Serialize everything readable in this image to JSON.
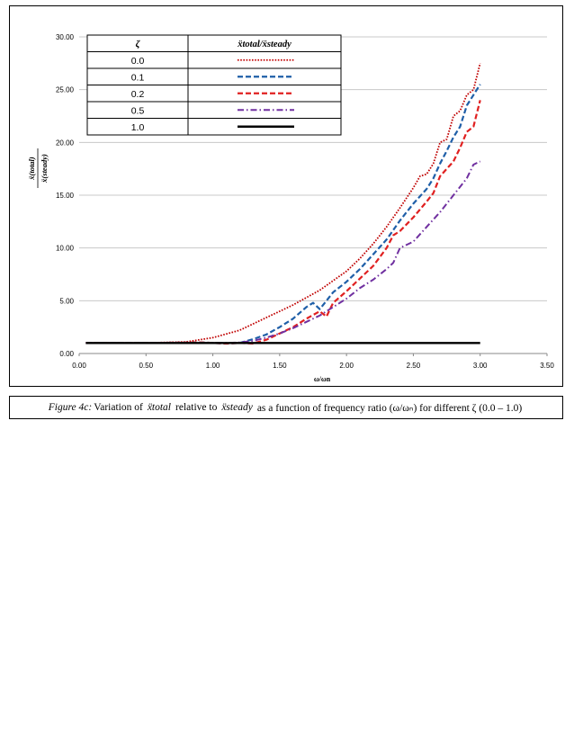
{
  "chart_data": {
    "type": "line",
    "title": "",
    "xlabel": "ω/ωn",
    "ylabel": "ẍ(total) / ẍ(steady)",
    "xlim": [
      0,
      3.5
    ],
    "ylim": [
      0,
      30
    ],
    "x_ticks": [
      "0.00",
      "0.50",
      "1.00",
      "1.50",
      "2.00",
      "2.50",
      "3.00",
      "3.50"
    ],
    "y_ticks": [
      "0.00",
      "5.00",
      "10.00",
      "15.00",
      "20.00",
      "25.00",
      "30.00"
    ],
    "grid": "horizontal",
    "legend": {
      "header_zeta": "ζ",
      "header_ratio": "ẍtotal/ẍsteady",
      "entries": [
        "0.0",
        "0.1",
        "0.2",
        "0.5",
        "1.0"
      ]
    },
    "series": [
      {
        "name": "0.0",
        "color": "#c00000",
        "style": "dotted",
        "x": [
          0.05,
          0.5,
          0.8,
          1.0,
          1.2,
          1.4,
          1.6,
          1.8,
          2.0,
          2.1,
          2.2,
          2.3,
          2.4,
          2.5,
          2.55,
          2.6,
          2.65,
          2.7,
          2.75,
          2.8,
          2.85,
          2.9,
          2.95,
          3.0
        ],
        "y": [
          1.0,
          1.0,
          1.1,
          1.5,
          2.2,
          3.4,
          4.6,
          6.0,
          7.8,
          9.0,
          10.4,
          12.0,
          13.8,
          15.7,
          16.8,
          17.0,
          18.0,
          20.0,
          20.3,
          22.5,
          23.0,
          24.5,
          25.0,
          27.5
        ]
      },
      {
        "name": "0.1",
        "color": "#1f5fa8",
        "style": "dashed",
        "x": [
          0.05,
          0.5,
          0.9,
          1.0,
          1.1,
          1.2,
          1.3,
          1.4,
          1.5,
          1.6,
          1.7,
          1.75,
          1.8,
          1.9,
          2.0,
          2.1,
          2.2,
          2.3,
          2.4,
          2.5,
          2.6,
          2.65,
          2.7,
          2.75,
          2.8,
          2.85,
          2.9,
          2.95,
          3.0
        ],
        "y": [
          1.0,
          1.0,
          1.05,
          1.0,
          0.95,
          1.0,
          1.35,
          1.8,
          2.5,
          3.3,
          4.4,
          4.8,
          4.2,
          5.8,
          6.8,
          8.0,
          9.4,
          10.8,
          12.6,
          14.2,
          15.6,
          16.6,
          18.0,
          19.2,
          20.5,
          21.5,
          23.5,
          24.5,
          25.5
        ]
      },
      {
        "name": "0.2",
        "color": "#e02020",
        "style": "dashed",
        "x": [
          0.05,
          0.5,
          0.9,
          1.0,
          1.1,
          1.2,
          1.3,
          1.4,
          1.5,
          1.6,
          1.7,
          1.8,
          1.85,
          1.9,
          2.0,
          2.1,
          2.2,
          2.3,
          2.35,
          2.4,
          2.5,
          2.6,
          2.65,
          2.7,
          2.75,
          2.8,
          2.85,
          2.9,
          2.95,
          3.0
        ],
        "y": [
          1.0,
          1.0,
          1.05,
          1.0,
          0.95,
          1.0,
          0.95,
          1.3,
          1.9,
          2.5,
          3.3,
          4.0,
          3.5,
          4.8,
          5.9,
          7.1,
          8.3,
          10.0,
          11.2,
          11.6,
          12.9,
          14.4,
          15.2,
          16.8,
          17.5,
          18.2,
          19.5,
          21.0,
          21.5,
          24.0
        ]
      },
      {
        "name": "0.5",
        "color": "#7030a0",
        "style": "dashdot",
        "x": [
          0.05,
          0.5,
          1.0,
          1.1,
          1.2,
          1.3,
          1.4,
          1.5,
          1.6,
          1.7,
          1.8,
          1.9,
          2.0,
          2.1,
          2.2,
          2.3,
          2.35,
          2.4,
          2.5,
          2.6,
          2.7,
          2.8,
          2.9,
          2.95,
          3.0
        ],
        "y": [
          1.0,
          1.0,
          1.0,
          1.0,
          1.05,
          1.2,
          1.5,
          1.9,
          2.4,
          3.0,
          3.6,
          4.4,
          5.2,
          6.2,
          7.0,
          8.0,
          8.6,
          10.0,
          10.6,
          12.0,
          13.4,
          15.0,
          16.6,
          17.9,
          18.2
        ]
      },
      {
        "name": "1.0",
        "color": "#000000",
        "style": "solid",
        "x": [
          0.05,
          3.0
        ],
        "y": [
          1.0,
          1.0
        ]
      }
    ]
  },
  "caption": {
    "figure_label": "Figure 4c:",
    "text1": "Variation of",
    "sym_total": "ẍtotal",
    "text2": "relative to",
    "sym_steady": "ẍsteady",
    "text3": "as a function of frequency ratio (ω/ωₙ) for different ζ (0.0 – 1.0)"
  }
}
